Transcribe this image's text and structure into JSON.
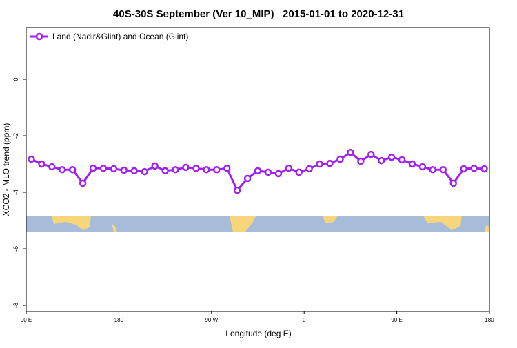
{
  "chart_data": {
    "type": "line",
    "title": "40S-30S September (Ver 10_MIP)   2015-01-01 to 2020-12-31",
    "x_label": "Longitude (deg E)",
    "y_label": "XCO2 - MLO trend (ppm)",
    "x": [
      95,
      105,
      115,
      125,
      135,
      145,
      155,
      165,
      175,
      185,
      195,
      205,
      215,
      225,
      235,
      245,
      255,
      265,
      275,
      285,
      295,
      305,
      315,
      325,
      335,
      345,
      355,
      365,
      375,
      385,
      395,
      405,
      415,
      425,
      435,
      445,
      455,
      465,
      475,
      485,
      495,
      505,
      515,
      525,
      535
    ],
    "series": [
      {
        "name": "Land (Nadir&Glint) and Ocean (Glint)",
        "color": "#a020f0",
        "values": [
          -2.83,
          -3.0,
          -3.1,
          -3.2,
          -3.2,
          -3.68,
          -3.15,
          -3.15,
          -3.17,
          -3.22,
          -3.24,
          -3.27,
          -3.07,
          -3.24,
          -3.2,
          -3.12,
          -3.15,
          -3.2,
          -3.2,
          -3.15,
          -3.93,
          -3.51,
          -3.24,
          -3.29,
          -3.34,
          -3.15,
          -3.29,
          -3.17,
          -3.0,
          -2.98,
          -2.83,
          -2.59,
          -2.9,
          -2.66,
          -2.88,
          -2.76,
          -2.85,
          -3.0,
          -3.1,
          -3.2,
          -3.2,
          -3.68,
          -3.17,
          -3.15,
          -3.17
        ]
      }
    ],
    "xlim": [
      90,
      540
    ],
    "xticks": [
      {
        "value": 90,
        "label": "90 E"
      },
      180,
      {
        "value": 270,
        "label": "90 W"
      },
      {
        "value": 360,
        "label": "0"
      },
      {
        "value": 450,
        "label": "90 E"
      },
      {
        "value": 540,
        "label": "180"
      }
    ],
    "ylim": [
      -8.22,
      1.83
    ],
    "yticks": [
      0,
      -2,
      -4,
      -6,
      -8
    ],
    "legend": "top-left"
  }
}
